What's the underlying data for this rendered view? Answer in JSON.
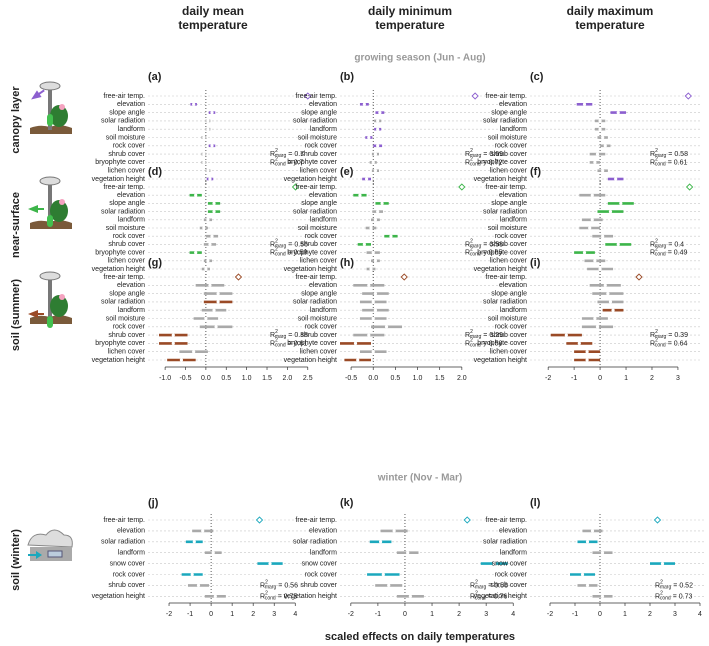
{
  "figure": {
    "column_titles": [
      [
        "daily mean",
        "temperature"
      ],
      [
        "daily minimum",
        "temperature"
      ],
      [
        "daily maximum",
        "temperature"
      ]
    ],
    "row_titles": [
      "canopy layer",
      "near-surface",
      "soil (summer)",
      "soil (winter)"
    ],
    "row_colors": [
      "#8c5fcf",
      "#3db54a",
      "#9a4a26",
      "#1ba8bd"
    ],
    "section_titles": [
      "growing season (Jun - Aug)",
      "winter (Nov - Mar)"
    ],
    "x_label": "scaled effects on daily temperatures",
    "r2_label": {
      "symbol": "R",
      "power": "2",
      "marg": "marg",
      "cond": "cond",
      "equals": "="
    },
    "muted_color": "#a9a9a9"
  },
  "chart_data": [
    {
      "type": "forest",
      "label": "(a)",
      "categories": [
        "free-air temp.",
        "elevation",
        "slope angle",
        "solar radiation",
        "landform",
        "soil moisture",
        "rock cover",
        "shrub cover",
        "bryophyte cover",
        "lichen cover",
        "vegetation height"
      ],
      "values": [
        2.5,
        -0.3,
        0.15,
        0.05,
        0.05,
        -0.05,
        0.15,
        -0.05,
        -0.05,
        0.05,
        0.1
      ],
      "errors": [
        null,
        0.08,
        0.08,
        0.06,
        0.06,
        0.06,
        0.08,
        0.06,
        0.06,
        0.06,
        0.08
      ],
      "highlight": [
        true,
        true,
        true,
        false,
        false,
        false,
        true,
        false,
        false,
        false,
        true
      ],
      "color": "#8c5fcf",
      "xlim": [
        -1.42,
        2.8
      ],
      "r2_marg": 0.7,
      "r2_cond": 0.7
    },
    {
      "type": "forest",
      "label": "(b)",
      "categories": [
        "free-air temp.",
        "elevation",
        "slope angle",
        "solar radiation",
        "landform",
        "soil moisture",
        "rock cover",
        "shrub cover",
        "bryophyte cover",
        "lichen cover",
        "vegetation height"
      ],
      "values": [
        2.3,
        -0.2,
        0.15,
        0.1,
        0.1,
        -0.1,
        0.1,
        0.05,
        0,
        0.05,
        -0.15
      ],
      "errors": [
        null,
        0.1,
        0.1,
        0.08,
        0.08,
        0.08,
        0.1,
        0.08,
        0.08,
        0.08,
        0.1
      ],
      "highlight": [
        true,
        true,
        true,
        false,
        true,
        true,
        true,
        false,
        false,
        false,
        true
      ],
      "color": "#8c5fcf",
      "xlim": [
        -0.75,
        3.2
      ],
      "r2_marg": 0.69,
      "r2_cond": 0.72
    },
    {
      "type": "forest",
      "label": "(c)",
      "categories": [
        "free-air temp.",
        "elevation",
        "slope angle",
        "solar radiation",
        "landform",
        "soil moisture",
        "rock cover",
        "shrub cover",
        "bryophyte cover",
        "lichen cover",
        "vegetation height"
      ],
      "values": [
        3.4,
        -0.6,
        0.7,
        0,
        0,
        0.1,
        0.2,
        -0.1,
        -0.2,
        0.1,
        0.6
      ],
      "errors": [
        null,
        0.3,
        0.3,
        0.2,
        0.2,
        0.2,
        0.2,
        0.3,
        0.2,
        0.2,
        0.3
      ],
      "highlight": [
        true,
        true,
        true,
        false,
        false,
        false,
        false,
        false,
        false,
        false,
        true
      ],
      "color": "#8c5fcf",
      "xlim": [
        -2.7,
        3.85
      ],
      "r2_marg": 0.58,
      "r2_cond": 0.61
    },
    {
      "type": "forest",
      "label": "(d)",
      "categories": [
        "free-air temp.",
        "elevation",
        "slope angle",
        "solar radiation",
        "landform",
        "soil moisture",
        "rock cover",
        "shrub cover",
        "bryophyte cover",
        "lichen cover",
        "vegetation height"
      ],
      "values": [
        2.2,
        -0.25,
        0.2,
        0.2,
        0.05,
        -0.05,
        0.15,
        0.1,
        -0.25,
        0.05,
        0
      ],
      "errors": [
        null,
        0.15,
        0.15,
        0.15,
        0.1,
        0.1,
        0.15,
        0.15,
        0.15,
        0.1,
        0.1
      ],
      "highlight": [
        true,
        true,
        true,
        true,
        false,
        false,
        false,
        false,
        true,
        false,
        false
      ],
      "color": "#3db54a",
      "xlim": [
        -1.42,
        2.8
      ],
      "r2_marg": 0.56,
      "r2_cond": 0.59
    },
    {
      "type": "forest",
      "label": "(e)",
      "categories": [
        "free-air temp.",
        "elevation",
        "slope angle",
        "solar radiation",
        "landform",
        "soil moisture",
        "rock cover",
        "shrub cover",
        "bryophyte cover",
        "lichen cover",
        "vegetation height"
      ],
      "values": [
        2,
        -0.3,
        0.2,
        0.1,
        0.05,
        -0.05,
        0.4,
        -0.2,
        0,
        0.05,
        -0.05
      ],
      "errors": [
        null,
        0.15,
        0.15,
        0.12,
        0.1,
        0.12,
        0.15,
        0.15,
        0.15,
        0.1,
        0.1
      ],
      "highlight": [
        true,
        true,
        true,
        false,
        false,
        false,
        true,
        true,
        false,
        false,
        false
      ],
      "color": "#3db54a",
      "xlim": [
        -0.75,
        3.2
      ],
      "r2_marg": 0.58,
      "r2_cond": 0.65
    },
    {
      "type": "forest",
      "label": "(f)",
      "categories": [
        "free-air temp.",
        "elevation",
        "slope angle",
        "solar radiation",
        "landform",
        "soil moisture",
        "rock cover",
        "shrub cover",
        "bryophyte cover",
        "lichen cover",
        "vegetation height"
      ],
      "values": [
        3.45,
        -0.3,
        0.8,
        0.4,
        -0.3,
        -0.4,
        0.1,
        0.7,
        -0.6,
        -0.2,
        0
      ],
      "errors": [
        null,
        0.5,
        0.5,
        0.5,
        0.4,
        0.4,
        0.4,
        0.5,
        0.4,
        0.4,
        0.5
      ],
      "highlight": [
        true,
        false,
        true,
        true,
        false,
        false,
        false,
        true,
        true,
        false,
        false
      ],
      "color": "#3db54a",
      "xlim": [
        -2.7,
        3.85
      ],
      "r2_marg": 0.4,
      "r2_cond": 0.49
    },
    {
      "type": "forest",
      "label": "(g)",
      "categories": [
        "free-air temp.",
        "elevation",
        "slope angle",
        "solar radiation",
        "landform",
        "soil moisture",
        "rock cover",
        "shrub cover",
        "bryophyte cover",
        "lichen cover",
        "vegetation height"
      ],
      "values": [
        0.8,
        0.1,
        0.3,
        0.3,
        0.2,
        0,
        0.25,
        -0.8,
        -0.8,
        -0.3,
        -0.6
      ],
      "errors": [
        null,
        0.35,
        0.35,
        0.35,
        0.3,
        0.3,
        0.4,
        0.35,
        0.35,
        0.35,
        0.35
      ],
      "highlight": [
        true,
        false,
        false,
        true,
        false,
        false,
        false,
        true,
        true,
        false,
        true
      ],
      "color": "#9a4a26",
      "xlim": [
        -1.42,
        2.8
      ],
      "xticks": [
        {
          "value": -1,
          "label": "-1.0"
        },
        -0.5,
        {
          "value": 0,
          "label": "0.0"
        },
        0.5,
        {
          "value": 1,
          "label": "1.0"
        },
        1.5,
        {
          "value": 2,
          "label": "2.0"
        },
        2.5
      ],
      "r2_marg": 0.38,
      "r2_cond": 0.61
    },
    {
      "type": "forest",
      "label": "(h)",
      "categories": [
        "free-air temp.",
        "elevation",
        "slope angle",
        "solar radiation",
        "landform",
        "soil moisture",
        "rock cover",
        "shrub cover",
        "bryophyte cover",
        "lichen cover",
        "vegetation height"
      ],
      "values": [
        0.7,
        -0.1,
        0.05,
        0,
        0.05,
        0,
        0.3,
        -0.1,
        -0.4,
        0,
        -0.35
      ],
      "errors": [
        null,
        0.35,
        0.3,
        0.3,
        0.3,
        0.3,
        0.35,
        0.35,
        0.35,
        0.3,
        0.3
      ],
      "highlight": [
        true,
        false,
        false,
        false,
        false,
        false,
        false,
        false,
        true,
        false,
        true
      ],
      "color": "#9a4a26",
      "xlim": [
        -0.75,
        3.2
      ],
      "xticks": [
        -0.5,
        {
          "value": 0,
          "label": "0.0"
        },
        0.5,
        {
          "value": 1,
          "label": "1.0"
        },
        1.5,
        {
          "value": 2,
          "label": "2.0"
        }
      ],
      "r2_marg": 0.29,
      "r2_cond": 0.58
    },
    {
      "type": "forest",
      "label": "(i)",
      "categories": [
        "free-air temp.",
        "elevation",
        "slope angle",
        "solar radiation",
        "landform",
        "soil moisture",
        "rock cover",
        "shrub cover",
        "bryophyte cover",
        "lichen cover",
        "vegetation height"
      ],
      "values": [
        1.5,
        0.2,
        0.3,
        0.4,
        0.5,
        -0.2,
        -0.1,
        -1.3,
        -0.8,
        -0.5,
        -0.5
      ],
      "errors": [
        null,
        0.6,
        0.6,
        0.5,
        0.4,
        0.5,
        0.6,
        0.6,
        0.5,
        0.5,
        0.5
      ],
      "highlight": [
        true,
        false,
        false,
        false,
        true,
        false,
        false,
        true,
        true,
        true,
        true
      ],
      "color": "#9a4a26",
      "xlim": [
        -2.7,
        3.85
      ],
      "xticks": [
        -2,
        -1,
        0,
        1,
        2,
        3
      ],
      "r2_marg": 0.39,
      "r2_cond": 0.64
    },
    {
      "type": "forest",
      "label": "(j)",
      "categories": [
        "free-air temp.",
        "elevation",
        "solar radiation",
        "landform",
        "snow cover",
        "rock cover",
        "shrub cover",
        "vegetation height"
      ],
      "values": [
        2.3,
        -0.4,
        -0.8,
        0.1,
        2.8,
        -0.9,
        -0.6,
        0.2
      ],
      "errors": [
        null,
        0.5,
        0.4,
        0.4,
        0.6,
        0.5,
        0.5,
        0.5
      ],
      "highlight": [
        true,
        false,
        true,
        false,
        true,
        true,
        false,
        false
      ],
      "color": "#1ba8bd",
      "xlim": [
        -3,
        4.7
      ],
      "xticks": [
        -2,
        -1,
        0,
        1,
        2,
        3,
        4
      ],
      "r2_marg": 0.56,
      "r2_cond": 0.75
    },
    {
      "type": "forest",
      "label": "(k)",
      "categories": [
        "free-air temp.",
        "elevation",
        "solar radiation",
        "landform",
        "snow cover",
        "rock cover",
        "shrub cover",
        "vegetation height"
      ],
      "values": [
        2.3,
        -0.4,
        -0.9,
        0.1,
        3.3,
        -0.8,
        -0.6,
        0.2
      ],
      "errors": [
        null,
        0.5,
        0.4,
        0.4,
        0.5,
        0.6,
        0.5,
        0.5
      ],
      "highlight": [
        true,
        false,
        true,
        false,
        true,
        true,
        false,
        false
      ],
      "color": "#1ba8bd",
      "xlim": [
        -2.4,
        4.25
      ],
      "xticks": [
        -2,
        -1,
        0,
        1,
        2,
        3,
        4
      ],
      "r2_marg": 0.58,
      "r2_cond": 0.76
    },
    {
      "type": "forest",
      "label": "(l)",
      "categories": [
        "free-air temp.",
        "elevation",
        "solar radiation",
        "landform",
        "snow cover",
        "rock cover",
        "shrub cover",
        "vegetation height"
      ],
      "values": [
        2.3,
        -0.3,
        -0.5,
        0.1,
        2.5,
        -0.7,
        -0.5,
        0.1
      ],
      "errors": [
        null,
        0.4,
        0.4,
        0.4,
        0.5,
        0.5,
        0.4,
        0.4
      ],
      "highlight": [
        true,
        false,
        true,
        false,
        true,
        true,
        false,
        false
      ],
      "color": "#1ba8bd",
      "xlim": [
        -2.8,
        4.2
      ],
      "xticks": [
        -2,
        -1,
        0,
        1,
        2,
        3,
        4
      ],
      "r2_marg": 0.52,
      "r2_cond": 0.73
    }
  ]
}
